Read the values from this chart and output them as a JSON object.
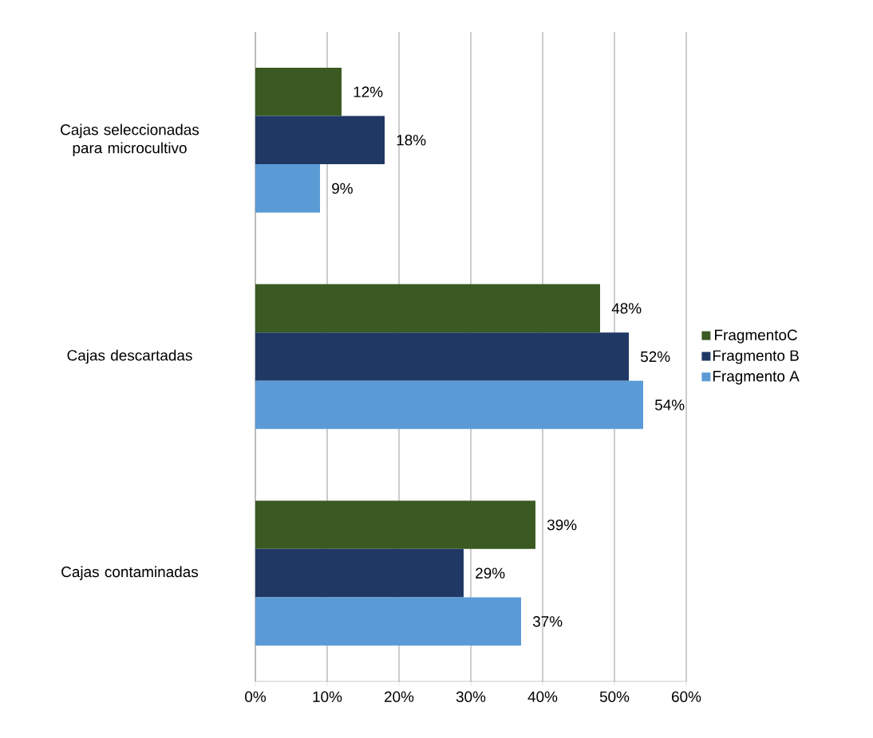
{
  "chart_data": {
    "type": "bar",
    "orientation": "horizontal",
    "categories": [
      "Cajas seleccionadas para microcultivo",
      "Cajas descartadas",
      "Cajas contaminadas"
    ],
    "series": [
      {
        "name": "FragmentoC",
        "color": "#3b5a22",
        "values": [
          12,
          48,
          39
        ],
        "value_labels": [
          "12%",
          "48%",
          "39%"
        ]
      },
      {
        "name": "Fragmento B",
        "color": "#203864",
        "values": [
          18,
          52,
          29
        ],
        "value_labels": [
          "18%",
          "52%",
          "29%"
        ]
      },
      {
        "name": "Fragmento A",
        "color": "#5b9bd5",
        "values": [
          9,
          54,
          37
        ],
        "value_labels": [
          "9%",
          "54%",
          "37%"
        ]
      }
    ],
    "xlim": [
      0,
      60
    ],
    "xticks": [
      {
        "value": 0,
        "label": "0%"
      },
      {
        "value": 10,
        "label": "10%"
      },
      {
        "value": 20,
        "label": "20%"
      },
      {
        "value": 30,
        "label": "30%"
      },
      {
        "value": 40,
        "label": "40%"
      },
      {
        "value": 50,
        "label": "50%"
      },
      {
        "value": 60,
        "label": "60%"
      }
    ],
    "grid": "x",
    "legend": "right"
  }
}
